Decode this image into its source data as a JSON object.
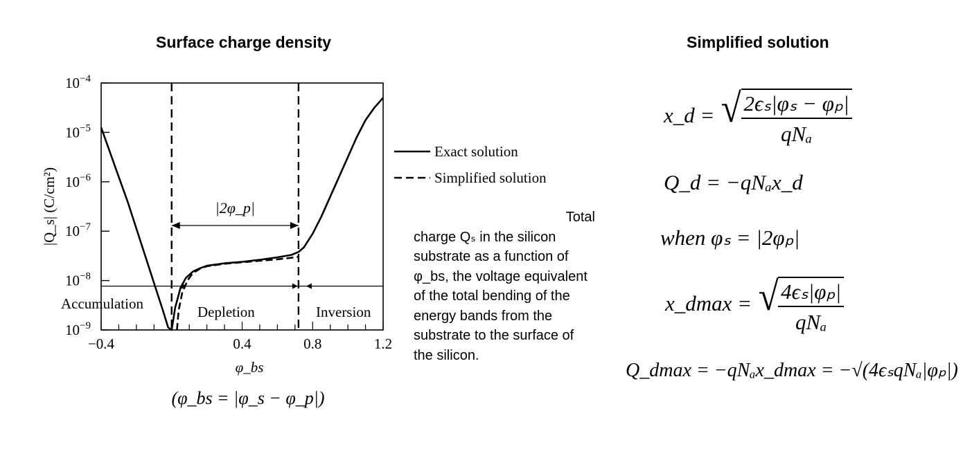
{
  "left_title": "Surface charge density",
  "right_title": "Simplified solution",
  "chart_data": {
    "type": "line",
    "title": "Surface charge density",
    "ylabel": "|Q_s| (C/cm²)",
    "xlabel": "φ_bs",
    "x_definition": "(φ_bs = |φ_s − φ_p|)",
    "xlim": [
      -0.4,
      1.2
    ],
    "ylim_log10": [
      -9,
      -4
    ],
    "x_tick_labels": [
      "−0.4",
      "0.4",
      "0.8",
      "1.2"
    ],
    "y_tick_labels": [
      {
        "base": "10",
        "exp": "−4"
      },
      {
        "base": "10",
        "exp": "−5"
      },
      {
        "base": "10",
        "exp": "−6"
      },
      {
        "base": "10",
        "exp": "−7"
      },
      {
        "base": "10",
        "exp": "−8"
      },
      {
        "base": "10",
        "exp": "−9"
      }
    ],
    "region_labels": [
      "Accumulation",
      "Depletion",
      "Inversion"
    ],
    "span_label": "|2φ_p|",
    "legend": [
      {
        "label": "Exact solution",
        "style": "solid"
      },
      {
        "label": "Simplified solution",
        "style": "dashed"
      }
    ],
    "vertical_dashed_lines_x": [
      0.0,
      0.72
    ],
    "series": [
      {
        "name": "Exact solution",
        "style": "solid",
        "x": [
          -0.4,
          -0.35,
          -0.3,
          -0.25,
          -0.2,
          -0.15,
          -0.1,
          -0.05,
          -0.02,
          0.0,
          0.02,
          0.05,
          0.08,
          0.12,
          0.16,
          0.2,
          0.3,
          0.4,
          0.5,
          0.6,
          0.68,
          0.72,
          0.75,
          0.8,
          0.85,
          0.9,
          0.95,
          1.0,
          1.05,
          1.1,
          1.15,
          1.2
        ],
        "y_log10": [
          -4.9,
          -5.4,
          -5.9,
          -6.4,
          -6.95,
          -7.5,
          -8.05,
          -8.6,
          -8.95,
          -9.0,
          -8.55,
          -8.15,
          -7.95,
          -7.82,
          -7.75,
          -7.7,
          -7.65,
          -7.62,
          -7.58,
          -7.53,
          -7.48,
          -7.42,
          -7.33,
          -7.05,
          -6.7,
          -6.3,
          -5.9,
          -5.5,
          -5.1,
          -4.75,
          -4.5,
          -4.3
        ]
      },
      {
        "name": "Simplified solution",
        "style": "dashed",
        "x": [
          0.03,
          0.04,
          0.06,
          0.09,
          0.12,
          0.16,
          0.2,
          0.3,
          0.4,
          0.5,
          0.6,
          0.7,
          0.72
        ],
        "y_log10": [
          -9.0,
          -8.6,
          -8.25,
          -8.0,
          -7.85,
          -7.76,
          -7.71,
          -7.66,
          -7.63,
          -7.6,
          -7.57,
          -7.53,
          -7.52
        ]
      }
    ]
  },
  "caption": {
    "first_line": "Total",
    "rest": "charge Qₛ in the silicon substrate as a function of φ_bs, the voltage equivalent of the total bending of the energy bands from the substrate to the surface of the silicon."
  },
  "equations": {
    "xd_lhs": "x_d =",
    "xd_num": "2ϵₛ|φₛ − φₚ|",
    "xd_den": "qNₐ",
    "qd": "Q_d = −qNₐx_d",
    "when": "when φₛ = |2φₚ|",
    "xdmax_lhs": "x_dmax =",
    "xdmax_num": "4ϵₛ|φₚ|",
    "xdmax_den": "qNₐ",
    "qdmax": "Q_dmax = −qNₐx_dmax = −√(4ϵₛqNₐ|φₚ|)"
  }
}
